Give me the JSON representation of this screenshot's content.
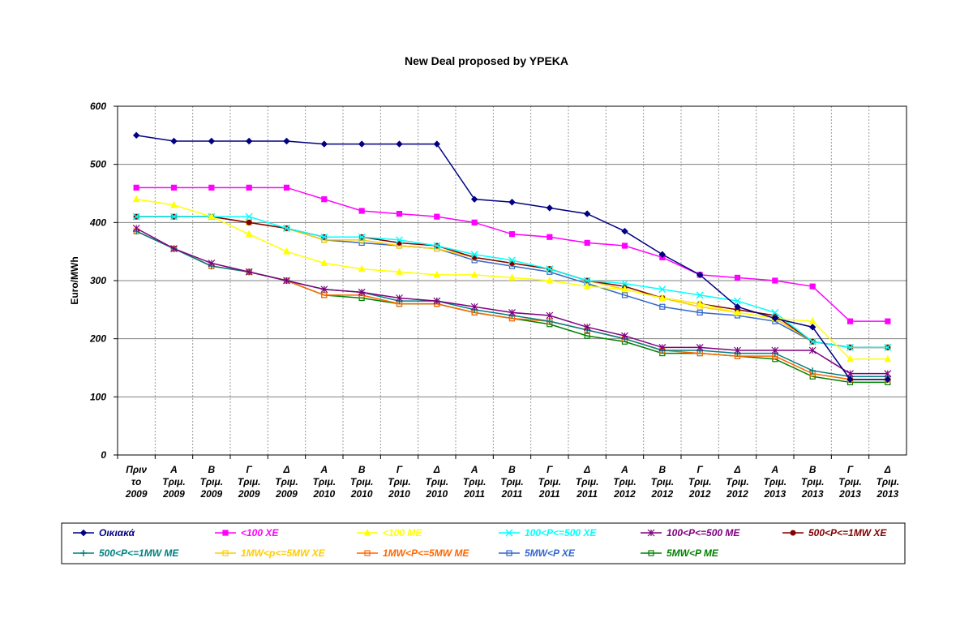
{
  "chart_data": {
    "type": "line",
    "title": "New Deal proposed by YPEKA",
    "xlabel": "",
    "ylabel": "Euro/MWh",
    "ylim": [
      0,
      600
    ],
    "yticks": [
      0,
      100,
      200,
      300,
      400,
      500,
      600
    ],
    "grid": true,
    "legend_position": "bottom",
    "categories": [
      [
        "Πριν",
        "το",
        "2009"
      ],
      [
        "Α",
        "Τριμ.",
        "2009"
      ],
      [
        "Β",
        "Τριμ.",
        "2009"
      ],
      [
        "Γ",
        "Τριμ.",
        "2009"
      ],
      [
        "Δ",
        "Τριμ.",
        "2009"
      ],
      [
        "Α",
        "Τριμ.",
        "2010"
      ],
      [
        "Β",
        "Τριμ.",
        "2010"
      ],
      [
        "Γ",
        "Τριμ.",
        "2010"
      ],
      [
        "Δ",
        "Τριμ.",
        "2010"
      ],
      [
        "Α",
        "Τριμ.",
        "2011"
      ],
      [
        "Β",
        "Τριμ.",
        "2011"
      ],
      [
        "Γ",
        "Τριμ.",
        "2011"
      ],
      [
        "Δ",
        "Τριμ.",
        "2011"
      ],
      [
        "Α",
        "Τριμ.",
        "2012"
      ],
      [
        "Β",
        "Τριμ.",
        "2012"
      ],
      [
        "Γ",
        "Τριμ.",
        "2012"
      ],
      [
        "Δ",
        "Τριμ.",
        "2012"
      ],
      [
        "Α",
        "Τριμ.",
        "2013"
      ],
      [
        "Β",
        "Τριμ.",
        "2013"
      ],
      [
        "Γ",
        "Τριμ.",
        "2013"
      ],
      [
        "Δ",
        "Τριμ.",
        "2013"
      ]
    ],
    "series": [
      {
        "name": "Οικιακά",
        "color": "#000080",
        "marker": "diamond",
        "values": [
          550,
          540,
          540,
          540,
          540,
          535,
          535,
          535,
          535,
          440,
          435,
          425,
          415,
          385,
          345,
          310,
          255,
          235,
          220,
          130,
          130
        ]
      },
      {
        "name": "<100 ΧΕ",
        "color": "#ff00ff",
        "marker": "square",
        "values": [
          460,
          460,
          460,
          460,
          460,
          440,
          420,
          415,
          410,
          400,
          380,
          375,
          365,
          360,
          340,
          310,
          305,
          300,
          290,
          230,
          230
        ]
      },
      {
        "name": "<100 ΜΕ",
        "color": "#ffff00",
        "marker": "triangle",
        "values": [
          440,
          430,
          410,
          380,
          350,
          330,
          320,
          315,
          310,
          310,
          305,
          300,
          290,
          285,
          270,
          260,
          245,
          235,
          230,
          165,
          165
        ]
      },
      {
        "name": "100<P<=500 ΧΕ",
        "color": "#00ffff",
        "marker": "x",
        "values": [
          410,
          410,
          410,
          410,
          390,
          375,
          375,
          370,
          360,
          345,
          335,
          320,
          300,
          295,
          285,
          275,
          265,
          245,
          195,
          185,
          185
        ]
      },
      {
        "name": "100<P<=500 ΜΕ",
        "color": "#800080",
        "marker": "star",
        "values": [
          390,
          355,
          330,
          315,
          300,
          285,
          280,
          270,
          265,
          255,
          245,
          240,
          220,
          205,
          185,
          185,
          180,
          180,
          180,
          140,
          140
        ]
      },
      {
        "name": "500<P<=1MW ΧΕ",
        "color": "#800000",
        "marker": "circle",
        "values": [
          410,
          410,
          410,
          400,
          390,
          375,
          375,
          365,
          360,
          340,
          330,
          320,
          300,
          290,
          270,
          260,
          250,
          240,
          195,
          185,
          185
        ]
      },
      {
        "name": "500<P<=1MW ΜΕ",
        "color": "#008080",
        "marker": "plus",
        "values": [
          385,
          355,
          325,
          315,
          300,
          285,
          280,
          265,
          265,
          250,
          240,
          230,
          215,
          200,
          180,
          180,
          175,
          175,
          145,
          135,
          135
        ]
      },
      {
        "name": "1MW<p<=5MW ΧΕ",
        "color": "#ffcc00",
        "marker": "square",
        "values": [
          410,
          410,
          410,
          400,
          390,
          370,
          370,
          360,
          355,
          340,
          330,
          320,
          300,
          285,
          270,
          255,
          245,
          235,
          195,
          185,
          185
        ]
      },
      {
        "name": "1MW<P<=5MW ΜΕ",
        "color": "#ff6600",
        "marker": "square",
        "values": [
          385,
          355,
          325,
          315,
          300,
          275,
          275,
          260,
          260,
          245,
          235,
          230,
          215,
          200,
          180,
          175,
          170,
          170,
          140,
          130,
          130
        ]
      },
      {
        "name": "5MW<P ΧΕ",
        "color": "#3366cc",
        "marker": "square",
        "values": [
          410,
          410,
          410,
          400,
          390,
          370,
          365,
          360,
          355,
          335,
          325,
          315,
          295,
          275,
          255,
          245,
          240,
          230,
          195,
          185,
          185
        ]
      },
      {
        "name": "5MW<P ΜΕ",
        "color": "#008000",
        "marker": "square",
        "values": [
          385,
          355,
          325,
          315,
          300,
          275,
          270,
          260,
          260,
          245,
          235,
          225,
          205,
          195,
          175,
          175,
          170,
          165,
          135,
          125,
          125
        ]
      }
    ]
  }
}
